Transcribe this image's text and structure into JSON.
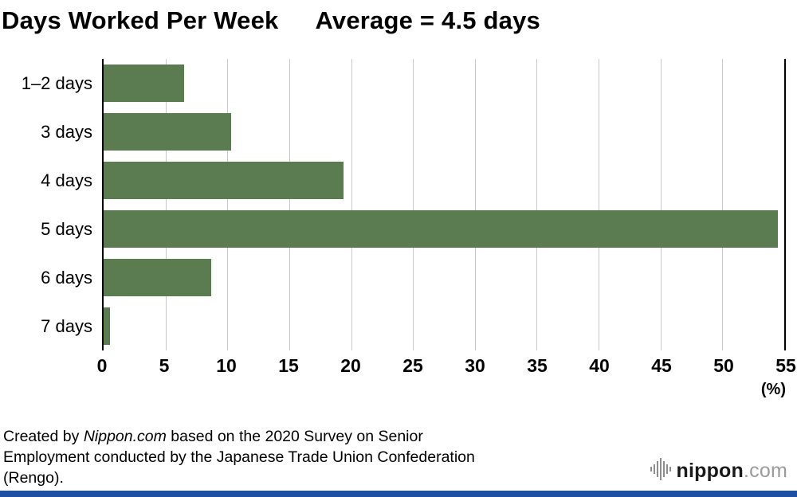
{
  "chart_data": {
    "type": "bar",
    "orientation": "horizontal",
    "title": "Days Worked Per Week",
    "subtitle": "Average = 4.5 days",
    "categories": [
      "1–2 days",
      "3 days",
      "4 days",
      "5 days",
      "6 days",
      "7 days"
    ],
    "values": [
      6.5,
      10.3,
      19.4,
      54.5,
      8.7,
      0.5
    ],
    "xlim": [
      0,
      55
    ],
    "xticks": [
      0,
      5,
      10,
      15,
      20,
      25,
      30,
      35,
      40,
      45,
      50,
      55
    ],
    "unit_label": "(%)",
    "bar_color": "#5a7c50",
    "grid": true,
    "legend": "none"
  },
  "footer": {
    "source_prefix": "Created by ",
    "source_name": "Nippon.com",
    "source_line1_rest": " based on the 2020 Survey on Senior",
    "source_line2": "Employment conducted by the Japanese Trade Union Confederation",
    "source_line3": "(Rengo).",
    "logo_name": "nippon",
    "logo_tld": ".com",
    "accent_bar_color": "#1e50a2"
  }
}
